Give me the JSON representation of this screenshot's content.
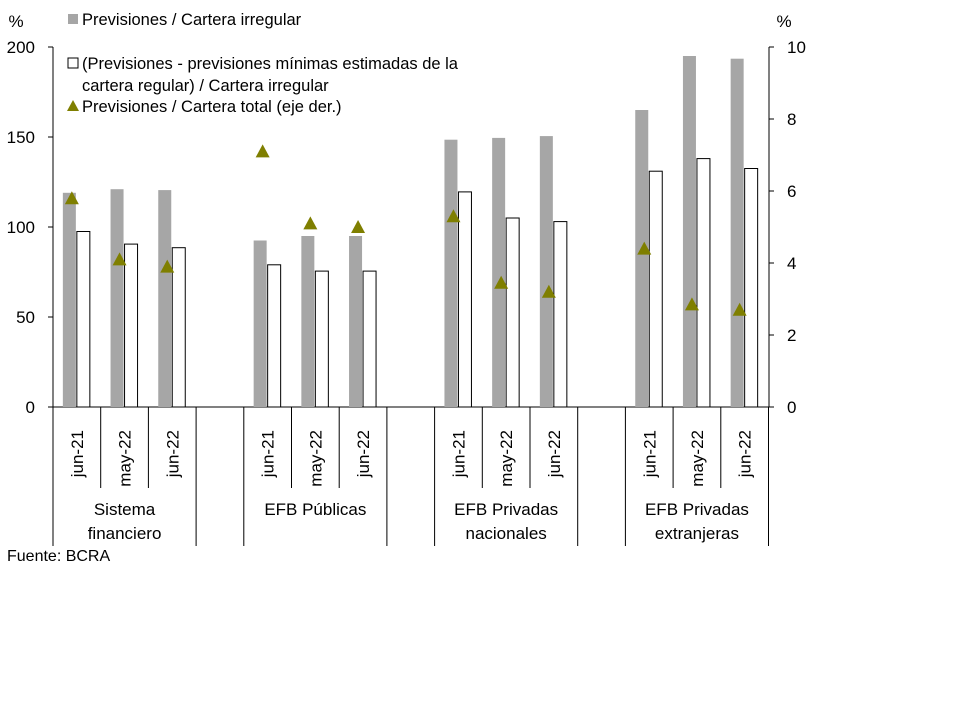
{
  "chart_data": {
    "type": "bar",
    "y_left_unit": "%",
    "y_right_unit": "%",
    "ylim_left": [
      0,
      200
    ],
    "yticks_left": [
      "0",
      "50",
      "100",
      "150",
      "200"
    ],
    "ylim_right": [
      0,
      10
    ],
    "yticks_right": [
      "0",
      "2",
      "4",
      "6",
      "8",
      "10"
    ],
    "groups": [
      {
        "label_lines": [
          "Sistema",
          "financiero"
        ],
        "categories": [
          "jun-21",
          "may-22",
          "jun-22"
        ]
      },
      {
        "label_lines": [
          "EFB Públicas"
        ],
        "categories": [
          "jun-21",
          "may-22",
          "jun-22"
        ]
      },
      {
        "label_lines": [
          "EFB Privadas",
          "nacionales"
        ],
        "categories": [
          "jun-21",
          "may-22",
          "jun-22"
        ]
      },
      {
        "label_lines": [
          "EFB Privadas",
          "extranjeras"
        ],
        "categories": [
          "jun-21",
          "may-22",
          "jun-22"
        ]
      }
    ],
    "series": [
      {
        "name": "Previsiones / Cartera irregular",
        "axis": "left",
        "kind": "bar",
        "color": "#a6a6a6",
        "values": [
          119,
          121,
          120.5,
          92.5,
          95,
          95,
          148.5,
          149.5,
          150.5,
          165,
          195,
          193.5
        ]
      },
      {
        "name": "(Previsiones - previsiones mínimas estimadas de la cartera regular) / Cartera irregular",
        "legend_lines": [
          "(Previsiones - previsiones mínimas estimadas de la",
          "cartera regular) / Cartera irregular"
        ],
        "axis": "left",
        "kind": "bar",
        "color": "#ffffff",
        "stroke": "#000000",
        "values": [
          97.5,
          90.5,
          88.5,
          79,
          75.5,
          75.5,
          119.5,
          105,
          103,
          131,
          138,
          132.5
        ]
      },
      {
        "name": "Previsiones / Cartera total (eje der.)",
        "axis": "right",
        "kind": "marker",
        "marker": "triangle",
        "color": "#7f7f00",
        "values": [
          5.8,
          4.1,
          3.9,
          7.1,
          5.1,
          5.0,
          5.3,
          3.45,
          3.2,
          4.4,
          2.85,
          2.7
        ]
      }
    ]
  },
  "source": "Fuente: BCRA"
}
